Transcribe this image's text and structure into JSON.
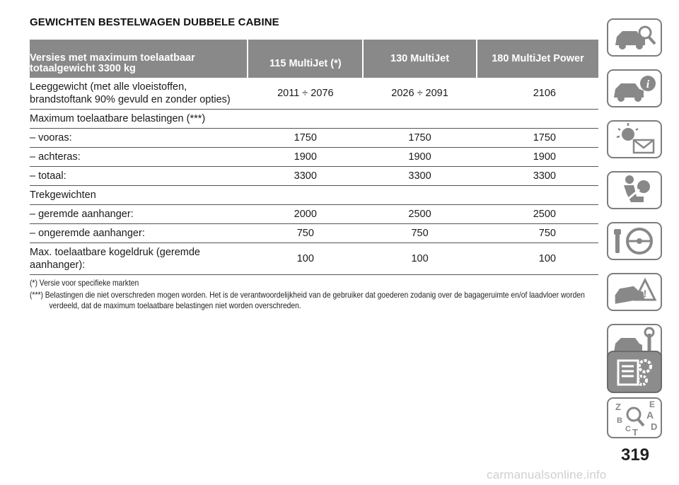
{
  "title": "GEWICHTEN BESTELWAGEN DUBBELE CABINE",
  "table": {
    "headers": [
      "Versies met maximum toelaatbaar totaalgewicht 3300 kg",
      "115 MultiJet (*)",
      "130 MultiJet",
      "180 MultiJet Power"
    ],
    "header_line1": "Versies met maximum toelaatbaar",
    "header_line2": "totaalgewicht 3300 kg",
    "rows": [
      {
        "label_line1": "Leeggewicht (met alle vloeistoffen,",
        "label_line2": "brandstoftank 90% gevuld en zonder opties)",
        "values": [
          "2011 ÷ 2076",
          "2026 ÷ 2091",
          "2106"
        ]
      },
      {
        "label": "Maximum toelaatbare belastingen (***)",
        "values": [
          "",
          "",
          ""
        ]
      },
      {
        "label": "– vooras:",
        "values": [
          "1750",
          "1750",
          "1750"
        ]
      },
      {
        "label": "– achteras:",
        "values": [
          "1900",
          "1900",
          "1900"
        ]
      },
      {
        "label": "– totaal:",
        "values": [
          "3300",
          "3300",
          "3300"
        ]
      },
      {
        "label": "Trekgewichten",
        "values": [
          "",
          "",
          ""
        ]
      },
      {
        "label": "– geremde aanhanger:",
        "values": [
          "2000",
          "2500",
          "2500"
        ]
      },
      {
        "label": "– ongeremde aanhanger:",
        "values": [
          "750",
          "750",
          "750"
        ]
      },
      {
        "label_line1": "Max. toelaatbare kogeldruk (geremde",
        "label_line2": "aanhanger):",
        "values": [
          "100",
          "100",
          "100"
        ]
      }
    ]
  },
  "notes": [
    "(*) Versie voor specifieke markten",
    "(***) Belastingen die niet overschreden mogen worden. Het is de verantwoordelijkheid van de gebruiker dat goederen zodanig over de bagageruimte en/of laadvloer worden verdeeld, dat de maximum toelaatbare belastingen niet worden overschreden."
  ],
  "sidebar": {
    "tabs": [
      {
        "icon": "car-search-icon"
      },
      {
        "icon": "car-info-icon"
      },
      {
        "icon": "warning-light-envelope-icon"
      },
      {
        "icon": "airbag-seat-icon"
      },
      {
        "icon": "steering-wheel-key-icon"
      },
      {
        "icon": "car-hazard-icon"
      },
      {
        "icon": "car-wrench-icon"
      },
      {
        "icon": "specifications-gear-icon",
        "active": true
      },
      {
        "icon": "index-search-icon",
        "letters": [
          "Z",
          "E",
          "A",
          "B",
          "C",
          "T",
          "D"
        ]
      }
    ],
    "active_color": "#8c8c8c",
    "border_color": "#7d7d7d"
  },
  "page_number": "319",
  "watermark": "carmanualsonline.info"
}
